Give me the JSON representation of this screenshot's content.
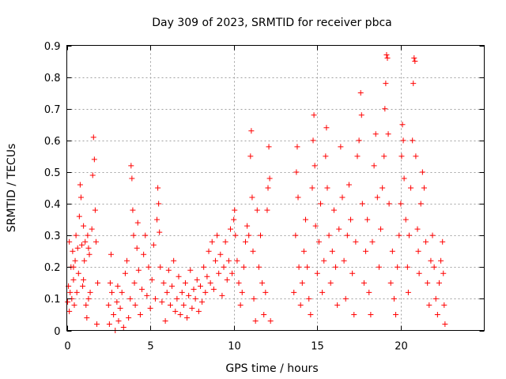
{
  "chart_data": {
    "type": "scatter",
    "title": "Day 309 of 2023, SRMTID for receiver pbca",
    "xlabel": "GPS time / hours",
    "ylabel": "SRMTID / TECUs",
    "xlim": [
      0,
      25
    ],
    "ylim": [
      0,
      0.9
    ],
    "xticks": [
      0,
      5,
      10,
      15,
      20
    ],
    "xtick_labels": [
      "0",
      "5",
      "10",
      "15",
      "20"
    ],
    "yticks": [
      0,
      0.1,
      0.2,
      0.3,
      0.4,
      0.5,
      0.6,
      0.7,
      0.8,
      0.9
    ],
    "ytick_labels": [
      "0",
      "0.1",
      "0.2",
      "0.3",
      "0.4",
      "0.5",
      "0.6",
      "0.7",
      "0.8",
      "0.9"
    ],
    "grid": true,
    "marker": "+",
    "color": "#ff0000",
    "series": [
      {
        "name": "pbca",
        "points": [
          [
            0.05,
            0.09
          ],
          [
            0.1,
            0.14
          ],
          [
            0.15,
            0.28
          ],
          [
            0.2,
            0.12
          ],
          [
            0.25,
            0.2
          ],
          [
            0.3,
            0.1
          ],
          [
            0.35,
            0.25
          ],
          [
            0.4,
            0.16
          ],
          [
            0.45,
            0.08
          ],
          [
            0.5,
            0.22
          ],
          [
            0.55,
            0.3
          ],
          [
            0.6,
            0.12
          ],
          [
            0.7,
            0.18
          ],
          [
            0.75,
            0.36
          ],
          [
            0.8,
            0.46
          ],
          [
            0.85,
            0.42
          ],
          [
            0.9,
            0.27
          ],
          [
            0.95,
            0.14
          ],
          [
            1.0,
            0.33
          ],
          [
            1.05,
            0.22
          ],
          [
            1.1,
            0.28
          ],
          [
            1.15,
            0.08
          ],
          [
            1.2,
            0.04
          ],
          [
            1.25,
            0.3
          ],
          [
            1.3,
            0.26
          ],
          [
            1.35,
            0.24
          ],
          [
            1.4,
            0.12
          ],
          [
            1.5,
            0.32
          ],
          [
            1.55,
            0.49
          ],
          [
            1.6,
            0.61
          ],
          [
            1.65,
            0.54
          ],
          [
            1.7,
            0.38
          ],
          [
            1.75,
            0.28
          ],
          [
            1.8,
            0.02
          ],
          [
            1.85,
            0.15
          ],
          [
            0.15,
            0.06
          ],
          [
            0.4,
            0.2
          ],
          [
            0.65,
            0.26
          ],
          [
            1.0,
            0.16
          ],
          [
            1.3,
            0.1
          ],
          [
            2.5,
            0.08
          ],
          [
            2.55,
            0.02
          ],
          [
            2.6,
            0.15
          ],
          [
            2.65,
            0.24
          ],
          [
            2.7,
            0.12
          ],
          [
            2.8,
            0.05
          ],
          [
            2.9,
            0.0
          ],
          [
            3.0,
            0.09
          ],
          [
            3.05,
            0.14
          ],
          [
            3.1,
            0.03
          ],
          [
            3.2,
            0.07
          ],
          [
            3.3,
            0.12
          ],
          [
            3.4,
            0.01
          ],
          [
            3.5,
            0.18
          ],
          [
            3.6,
            0.22
          ],
          [
            3.7,
            0.04
          ],
          [
            3.8,
            0.1
          ],
          [
            3.85,
            0.52
          ],
          [
            3.9,
            0.48
          ],
          [
            3.95,
            0.38
          ],
          [
            4.0,
            0.3
          ],
          [
            4.05,
            0.15
          ],
          [
            4.1,
            0.08
          ],
          [
            4.2,
            0.26
          ],
          [
            4.25,
            0.34
          ],
          [
            4.3,
            0.19
          ],
          [
            4.4,
            0.05
          ],
          [
            4.5,
            0.13
          ],
          [
            4.6,
            0.24
          ],
          [
            4.7,
            0.3
          ],
          [
            4.8,
            0.11
          ],
          [
            4.9,
            0.2
          ],
          [
            5.0,
            0.07
          ],
          [
            5.1,
            0.16
          ],
          [
            5.2,
            0.27
          ],
          [
            5.3,
            0.1
          ],
          [
            5.4,
            0.35
          ],
          [
            5.45,
            0.45
          ],
          [
            5.5,
            0.4
          ],
          [
            5.55,
            0.31
          ],
          [
            5.6,
            0.2
          ],
          [
            5.7,
            0.09
          ],
          [
            5.8,
            0.15
          ],
          [
            5.9,
            0.03
          ],
          [
            6.0,
            0.12
          ],
          [
            6.1,
            0.19
          ],
          [
            6.2,
            0.08
          ],
          [
            6.3,
            0.14
          ],
          [
            6.4,
            0.22
          ],
          [
            6.5,
            0.06
          ],
          [
            6.6,
            0.1
          ],
          [
            6.7,
            0.17
          ],
          [
            6.8,
            0.05
          ],
          [
            6.9,
            0.12
          ],
          [
            7.0,
            0.08
          ],
          [
            7.1,
            0.15
          ],
          [
            7.2,
            0.04
          ],
          [
            7.3,
            0.11
          ],
          [
            7.4,
            0.19
          ],
          [
            7.5,
            0.07
          ],
          [
            7.6,
            0.13
          ],
          [
            7.7,
            0.1
          ],
          [
            7.8,
            0.16
          ],
          [
            7.9,
            0.06
          ],
          [
            8.0,
            0.14
          ],
          [
            8.1,
            0.09
          ],
          [
            8.2,
            0.2
          ],
          [
            8.3,
            0.12
          ],
          [
            8.4,
            0.17
          ],
          [
            8.5,
            0.25
          ],
          [
            8.6,
            0.15
          ],
          [
            8.7,
            0.28
          ],
          [
            8.8,
            0.13
          ],
          [
            8.9,
            0.22
          ],
          [
            9.0,
            0.3
          ],
          [
            9.1,
            0.18
          ],
          [
            9.2,
            0.24
          ],
          [
            9.3,
            0.11
          ],
          [
            9.4,
            0.2
          ],
          [
            9.5,
            0.28
          ],
          [
            9.6,
            0.16
          ],
          [
            9.7,
            0.22
          ],
          [
            9.8,
            0.32
          ],
          [
            9.9,
            0.18
          ],
          [
            10.0,
            0.35
          ],
          [
            10.05,
            0.38
          ],
          [
            10.1,
            0.3
          ],
          [
            10.2,
            0.22
          ],
          [
            10.3,
            0.15
          ],
          [
            10.4,
            0.08
          ],
          [
            10.5,
            0.12
          ],
          [
            10.6,
            0.2
          ],
          [
            10.7,
            0.28
          ],
          [
            10.8,
            0.33
          ],
          [
            10.9,
            0.3
          ],
          [
            11.0,
            0.55
          ],
          [
            11.05,
            0.63
          ],
          [
            11.1,
            0.42
          ],
          [
            11.15,
            0.25
          ],
          [
            11.2,
            0.1
          ],
          [
            11.3,
            0.03
          ],
          [
            11.4,
            0.38
          ],
          [
            11.5,
            0.2
          ],
          [
            11.6,
            0.3
          ],
          [
            11.7,
            0.15
          ],
          [
            11.8,
            0.05
          ],
          [
            11.9,
            0.12
          ],
          [
            12.0,
            0.38
          ],
          [
            12.05,
            0.45
          ],
          [
            12.1,
            0.58
          ],
          [
            12.15,
            0.48
          ],
          [
            12.2,
            0.03
          ],
          [
            13.6,
            0.12
          ],
          [
            13.7,
            0.3
          ],
          [
            13.75,
            0.5
          ],
          [
            13.8,
            0.58
          ],
          [
            13.85,
            0.42
          ],
          [
            13.9,
            0.2
          ],
          [
            14.0,
            0.08
          ],
          [
            14.1,
            0.15
          ],
          [
            14.2,
            0.25
          ],
          [
            14.3,
            0.35
          ],
          [
            14.4,
            0.2
          ],
          [
            14.5,
            0.1
          ],
          [
            14.6,
            0.05
          ],
          [
            14.7,
            0.45
          ],
          [
            14.75,
            0.6
          ],
          [
            14.8,
            0.68
          ],
          [
            14.85,
            0.52
          ],
          [
            14.9,
            0.33
          ],
          [
            15.0,
            0.18
          ],
          [
            15.1,
            0.28
          ],
          [
            15.2,
            0.4
          ],
          [
            15.3,
            0.12
          ],
          [
            15.4,
            0.22
          ],
          [
            15.5,
            0.55
          ],
          [
            15.55,
            0.64
          ],
          [
            15.6,
            0.45
          ],
          [
            15.7,
            0.3
          ],
          [
            15.8,
            0.15
          ],
          [
            15.9,
            0.25
          ],
          [
            16.0,
            0.38
          ],
          [
            16.1,
            0.2
          ],
          [
            16.2,
            0.08
          ],
          [
            16.3,
            0.32
          ],
          [
            16.4,
            0.58
          ],
          [
            16.5,
            0.42
          ],
          [
            16.6,
            0.22
          ],
          [
            16.7,
            0.1
          ],
          [
            16.8,
            0.3
          ],
          [
            16.9,
            0.46
          ],
          [
            17.0,
            0.35
          ],
          [
            17.1,
            0.18
          ],
          [
            17.2,
            0.05
          ],
          [
            17.3,
            0.28
          ],
          [
            17.4,
            0.55
          ],
          [
            17.5,
            0.6
          ],
          [
            17.6,
            0.75
          ],
          [
            17.65,
            0.68
          ],
          [
            17.7,
            0.4
          ],
          [
            17.8,
            0.15
          ],
          [
            17.9,
            0.25
          ],
          [
            18.0,
            0.35
          ],
          [
            18.1,
            0.12
          ],
          [
            18.2,
            0.05
          ],
          [
            18.3,
            0.28
          ],
          [
            18.4,
            0.52
          ],
          [
            18.5,
            0.62
          ],
          [
            18.6,
            0.42
          ],
          [
            18.7,
            0.2
          ],
          [
            18.8,
            0.32
          ],
          [
            18.9,
            0.45
          ],
          [
            19.0,
            0.55
          ],
          [
            19.05,
            0.7
          ],
          [
            19.1,
            0.78
          ],
          [
            19.15,
            0.87
          ],
          [
            19.2,
            0.86
          ],
          [
            19.25,
            0.62
          ],
          [
            19.3,
            0.4
          ],
          [
            19.4,
            0.15
          ],
          [
            19.5,
            0.25
          ],
          [
            19.6,
            0.1
          ],
          [
            19.7,
            0.05
          ],
          [
            19.8,
            0.2
          ],
          [
            19.9,
            0.3
          ],
          [
            20.0,
            0.4
          ],
          [
            20.05,
            0.55
          ],
          [
            20.1,
            0.65
          ],
          [
            20.15,
            0.6
          ],
          [
            20.2,
            0.48
          ],
          [
            20.3,
            0.35
          ],
          [
            20.4,
            0.2
          ],
          [
            20.5,
            0.3
          ],
          [
            20.6,
            0.45
          ],
          [
            20.7,
            0.6
          ],
          [
            20.75,
            0.78
          ],
          [
            20.8,
            0.86
          ],
          [
            20.85,
            0.85
          ],
          [
            20.9,
            0.55
          ],
          [
            21.0,
            0.32
          ],
          [
            21.1,
            0.18
          ],
          [
            21.2,
            0.4
          ],
          [
            21.3,
            0.5
          ],
          [
            21.4,
            0.45
          ],
          [
            21.5,
            0.28
          ],
          [
            21.6,
            0.15
          ],
          [
            21.7,
            0.08
          ],
          [
            21.8,
            0.22
          ],
          [
            21.9,
            0.3
          ],
          [
            22.0,
            0.2
          ],
          [
            22.1,
            0.1
          ],
          [
            22.2,
            0.05
          ],
          [
            22.3,
            0.15
          ],
          [
            22.4,
            0.22
          ],
          [
            22.5,
            0.28
          ],
          [
            22.55,
            0.18
          ],
          [
            22.6,
            0.08
          ],
          [
            22.65,
            0.02
          ],
          [
            21.05,
            0.25
          ],
          [
            20.45,
            0.12
          ]
        ]
      }
    ]
  }
}
